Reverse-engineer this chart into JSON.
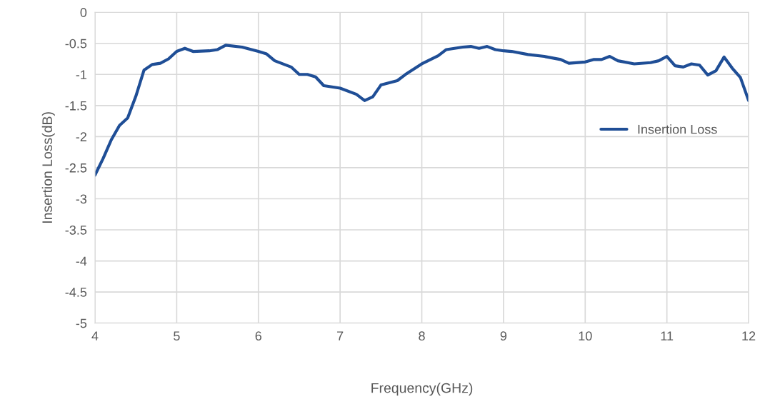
{
  "chart_data": {
    "type": "line",
    "xlabel": "Frequency(GHz)",
    "ylabel": "Insertion Loss(dB)",
    "xlim": [
      4,
      12
    ],
    "xticks": [
      4,
      5,
      6,
      7,
      8,
      9,
      10,
      11,
      12
    ],
    "ylim": [
      -5,
      0
    ],
    "yticks": [
      -5,
      -4.5,
      -4,
      -3.5,
      -3,
      -2.5,
      -2,
      -1.5,
      -1,
      -0.5,
      0
    ],
    "grid": true,
    "legend": "right",
    "marker": "none",
    "line_style": "solid",
    "series": [
      {
        "name": "Insertion Loss",
        "color": "#1f4e96",
        "x": [
          4.0,
          4.1,
          4.2,
          4.3,
          4.4,
          4.5,
          4.6,
          4.7,
          4.8,
          4.9,
          5.0,
          5.1,
          5.2,
          5.4,
          5.5,
          5.6,
          5.8,
          6.0,
          6.1,
          6.2,
          6.4,
          6.5,
          6.6,
          6.7,
          6.8,
          7.0,
          7.2,
          7.3,
          7.4,
          7.5,
          7.7,
          7.8,
          8.0,
          8.2,
          8.3,
          8.4,
          8.5,
          8.6,
          8.7,
          8.8,
          8.9,
          9.0,
          9.1,
          9.3,
          9.5,
          9.7,
          9.8,
          10.0,
          10.1,
          10.2,
          10.3,
          10.4,
          10.6,
          10.8,
          10.9,
          11.0,
          11.1,
          11.2,
          11.3,
          11.4,
          11.5,
          11.6,
          11.7,
          11.8,
          11.9,
          12.0
        ],
        "values": [
          -2.62,
          -2.35,
          -2.05,
          -1.82,
          -1.7,
          -1.35,
          -0.93,
          -0.84,
          -0.82,
          -0.75,
          -0.63,
          -0.58,
          -0.63,
          -0.62,
          -0.6,
          -0.53,
          -0.56,
          -0.63,
          -0.67,
          -0.78,
          -0.88,
          -1.0,
          -1.0,
          -1.04,
          -1.18,
          -1.22,
          -1.32,
          -1.42,
          -1.36,
          -1.17,
          -1.1,
          -1.0,
          -0.83,
          -0.7,
          -0.6,
          -0.58,
          -0.56,
          -0.55,
          -0.58,
          -0.55,
          -0.6,
          -0.62,
          -0.63,
          -0.68,
          -0.71,
          -0.76,
          -0.82,
          -0.8,
          -0.76,
          -0.76,
          -0.71,
          -0.78,
          -0.83,
          -0.81,
          -0.78,
          -0.71,
          -0.86,
          -0.88,
          -0.83,
          -0.85,
          -1.01,
          -0.94,
          -0.72,
          -0.9,
          -1.05,
          -1.42
        ]
      }
    ]
  }
}
